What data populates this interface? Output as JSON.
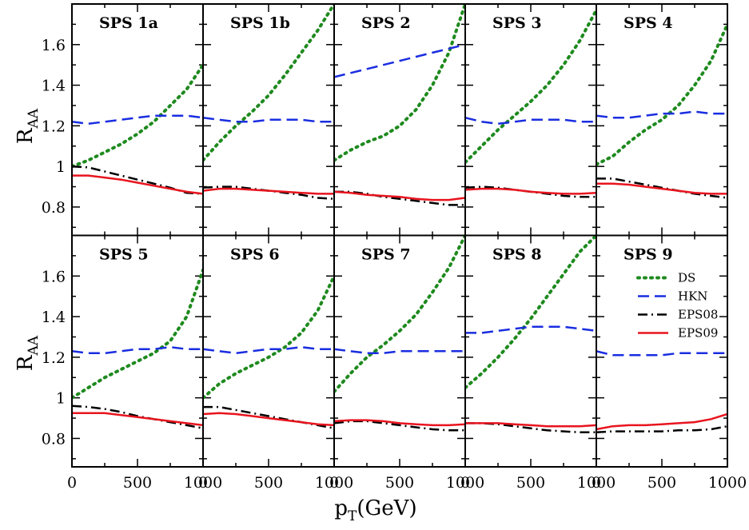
{
  "chart_data": {
    "type": "line",
    "layout": "grid 2 rows x 5 columns, shared axes",
    "xlabel": "p",
    "xlabel_sub": "T",
    "xlabel_unit": "(GeV)",
    "ylabel": "R",
    "ylabel_sub": "AA",
    "xlim": [
      0,
      1000
    ],
    "ylim": [
      0.66,
      1.8
    ],
    "x_ticks": [
      0,
      500,
      1000
    ],
    "x_tick_labels": [
      "0",
      "500",
      "1000"
    ],
    "y_ticks": [
      0.8,
      1.0,
      1.2,
      1.4,
      1.6
    ],
    "y_tick_labels": [
      "0.8",
      "1",
      "1.2",
      "1.4",
      "1.6"
    ],
    "legend": {
      "panel": "SPS 9",
      "entries": [
        {
          "name": "DS",
          "color": "#1e8a1e",
          "dash": "dotted"
        },
        {
          "name": "HKN",
          "color": "#1a2ee0",
          "dash": "dashed"
        },
        {
          "name": "EPS08",
          "color": "#000000",
          "dash": "dashdot"
        },
        {
          "name": "EPS09",
          "color": "#e8141e",
          "dash": "solid"
        }
      ]
    },
    "series_x": [
      0,
      125,
      250,
      375,
      500,
      625,
      750,
      875,
      1000
    ],
    "panels": [
      {
        "title": "SPS 1a",
        "series": {
          "DS": [
            1.0,
            1.03,
            1.07,
            1.11,
            1.16,
            1.22,
            1.3,
            1.38,
            1.5
          ],
          "HKN": [
            1.22,
            1.21,
            1.22,
            1.23,
            1.24,
            1.25,
            1.25,
            1.25,
            1.24
          ],
          "EPS08": [
            1.0,
            0.995,
            0.975,
            0.955,
            0.935,
            0.915,
            0.895,
            0.87,
            0.865
          ],
          "EPS09": [
            0.955,
            0.955,
            0.945,
            0.935,
            0.92,
            0.905,
            0.89,
            0.875,
            0.865
          ]
        }
      },
      {
        "title": "SPS 1b",
        "series": {
          "DS": [
            1.03,
            1.12,
            1.2,
            1.27,
            1.35,
            1.45,
            1.56,
            1.67,
            1.8
          ],
          "HKN": [
            1.24,
            1.23,
            1.22,
            1.22,
            1.23,
            1.23,
            1.23,
            1.22,
            1.22
          ],
          "EPS08": [
            0.895,
            0.9,
            0.9,
            0.89,
            0.88,
            0.87,
            0.86,
            0.845,
            0.84
          ],
          "EPS09": [
            0.88,
            0.89,
            0.89,
            0.885,
            0.88,
            0.875,
            0.87,
            0.865,
            0.865
          ]
        }
      },
      {
        "title": "SPS 2",
        "series": {
          "DS": [
            1.03,
            1.08,
            1.12,
            1.15,
            1.2,
            1.28,
            1.4,
            1.56,
            1.8
          ],
          "HKN": [
            1.44,
            1.46,
            1.48,
            1.5,
            1.52,
            1.54,
            1.56,
            1.58,
            1.6
          ],
          "EPS08": [
            0.875,
            0.875,
            0.865,
            0.85,
            0.84,
            0.83,
            0.82,
            0.81,
            0.81
          ],
          "EPS09": [
            0.875,
            0.87,
            0.86,
            0.855,
            0.85,
            0.84,
            0.835,
            0.835,
            0.845
          ]
        }
      },
      {
        "title": "SPS 3",
        "series": {
          "DS": [
            1.02,
            1.1,
            1.18,
            1.25,
            1.32,
            1.4,
            1.5,
            1.62,
            1.77
          ],
          "HKN": [
            1.24,
            1.22,
            1.21,
            1.22,
            1.23,
            1.23,
            1.23,
            1.22,
            1.22
          ],
          "EPS08": [
            0.895,
            0.9,
            0.895,
            0.885,
            0.875,
            0.865,
            0.855,
            0.85,
            0.85
          ],
          "EPS09": [
            0.885,
            0.89,
            0.89,
            0.885,
            0.875,
            0.87,
            0.865,
            0.865,
            0.87
          ]
        }
      },
      {
        "title": "SPS 4",
        "series": {
          "DS": [
            1.01,
            1.05,
            1.12,
            1.18,
            1.23,
            1.3,
            1.4,
            1.52,
            1.7
          ],
          "HKN": [
            1.25,
            1.24,
            1.24,
            1.25,
            1.26,
            1.26,
            1.27,
            1.26,
            1.26
          ],
          "EPS08": [
            0.94,
            0.94,
            0.925,
            0.91,
            0.895,
            0.88,
            0.865,
            0.855,
            0.845
          ],
          "EPS09": [
            0.915,
            0.915,
            0.91,
            0.9,
            0.89,
            0.88,
            0.87,
            0.865,
            0.865
          ]
        }
      },
      {
        "title": "SPS 5",
        "series": {
          "DS": [
            1.0,
            1.05,
            1.1,
            1.14,
            1.18,
            1.22,
            1.28,
            1.4,
            1.63
          ],
          "HKN": [
            1.23,
            1.22,
            1.22,
            1.23,
            1.24,
            1.24,
            1.25,
            1.24,
            1.24
          ],
          "EPS08": [
            0.96,
            0.955,
            0.945,
            0.93,
            0.91,
            0.895,
            0.88,
            0.865,
            0.85
          ],
          "EPS09": [
            0.925,
            0.925,
            0.925,
            0.915,
            0.905,
            0.895,
            0.885,
            0.875,
            0.865
          ]
        }
      },
      {
        "title": "SPS 6",
        "series": {
          "DS": [
            1.0,
            1.07,
            1.12,
            1.16,
            1.2,
            1.25,
            1.32,
            1.43,
            1.6
          ],
          "HKN": [
            1.24,
            1.23,
            1.22,
            1.23,
            1.24,
            1.24,
            1.25,
            1.24,
            1.24
          ],
          "EPS08": [
            0.955,
            0.955,
            0.94,
            0.925,
            0.91,
            0.895,
            0.88,
            0.865,
            0.85
          ],
          "EPS09": [
            0.92,
            0.925,
            0.92,
            0.91,
            0.9,
            0.89,
            0.88,
            0.87,
            0.865
          ]
        }
      },
      {
        "title": "SPS 7",
        "series": {
          "DS": [
            1.03,
            1.12,
            1.2,
            1.26,
            1.33,
            1.41,
            1.52,
            1.64,
            1.8
          ],
          "HKN": [
            1.24,
            1.23,
            1.22,
            1.22,
            1.23,
            1.23,
            1.23,
            1.23,
            1.23
          ],
          "EPS08": [
            0.875,
            0.885,
            0.885,
            0.875,
            0.865,
            0.855,
            0.845,
            0.84,
            0.84
          ],
          "EPS09": [
            0.885,
            0.89,
            0.89,
            0.885,
            0.875,
            0.87,
            0.865,
            0.865,
            0.87
          ]
        }
      },
      {
        "title": "SPS 8",
        "series": {
          "DS": [
            1.05,
            1.12,
            1.2,
            1.29,
            1.39,
            1.5,
            1.61,
            1.72,
            1.8
          ],
          "HKN": [
            1.32,
            1.32,
            1.33,
            1.34,
            1.35,
            1.35,
            1.35,
            1.34,
            1.33
          ],
          "EPS08": [
            0.875,
            0.875,
            0.87,
            0.86,
            0.85,
            0.84,
            0.835,
            0.83,
            0.83
          ],
          "EPS09": [
            0.875,
            0.875,
            0.875,
            0.87,
            0.865,
            0.86,
            0.86,
            0.86,
            0.865
          ]
        }
      },
      {
        "title": "SPS 9",
        "series": {
          "DS": null,
          "HKN": [
            1.23,
            1.21,
            1.21,
            1.21,
            1.21,
            1.22,
            1.22,
            1.22,
            1.22
          ],
          "EPS08": [
            0.83,
            0.835,
            0.835,
            0.835,
            0.835,
            0.84,
            0.84,
            0.845,
            0.86
          ],
          "EPS09": [
            0.845,
            0.86,
            0.865,
            0.865,
            0.87,
            0.875,
            0.88,
            0.895,
            0.92
          ]
        }
      }
    ]
  }
}
